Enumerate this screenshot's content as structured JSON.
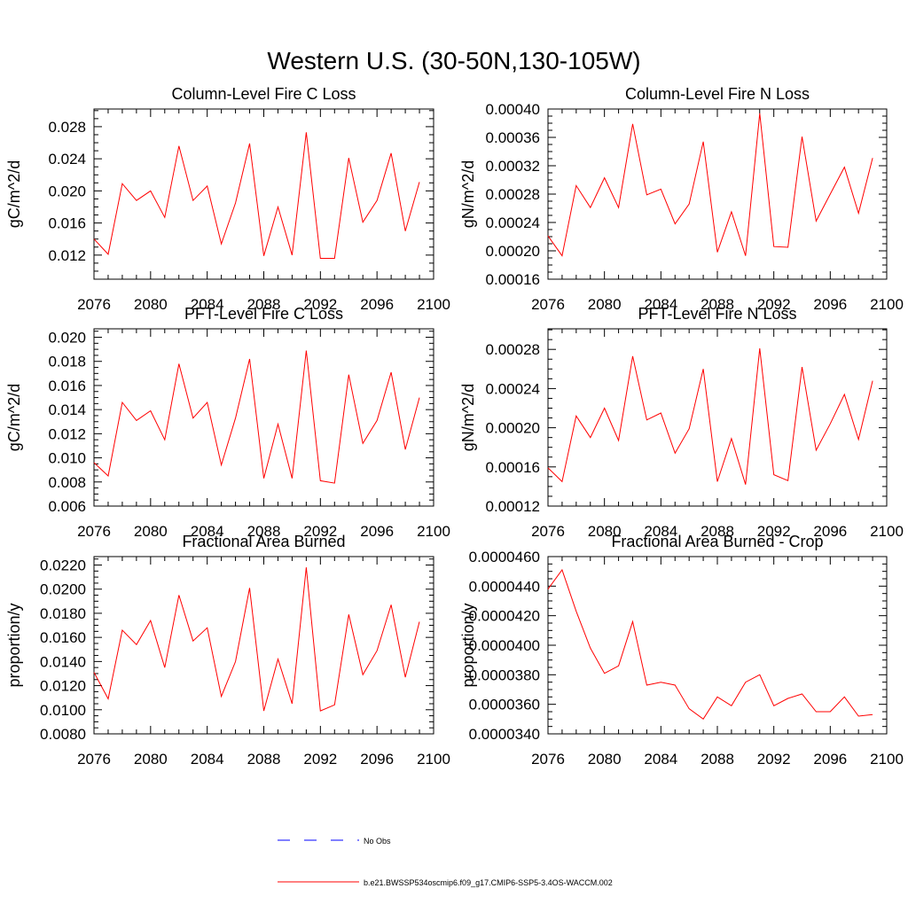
{
  "page": {
    "title": "Western U.S. (30-50N,130-105W)"
  },
  "legend": {
    "entries": [
      {
        "label": "No Obs",
        "color": "#0000ff",
        "style": "dashed"
      },
      {
        "label": "b.e21.BWSSP534oscmip6.f09_g17.CMIP6-SSP5-3.4OS-WACCM.002",
        "color": "#ff0000",
        "style": "solid"
      }
    ]
  },
  "chart_data": [
    {
      "type": "line",
      "title": "Column-Level Fire C Loss",
      "ylabel": "gC/m^2/d",
      "xlim": [
        2076,
        2100
      ],
      "ylim": [
        0.009,
        0.0302
      ],
      "xticks": [
        2076,
        2080,
        2084,
        2088,
        2092,
        2096,
        2100
      ],
      "yticks": [
        0.012,
        0.016,
        0.02,
        0.024,
        0.028
      ],
      "ytick_labels": [
        "0.012",
        "0.016",
        "0.020",
        "0.024",
        "0.028"
      ],
      "series": [
        {
          "color": "#ff0000",
          "x": [
            2076,
            2077,
            2078,
            2079,
            2080,
            2081,
            2082,
            2083,
            2084,
            2085,
            2086,
            2087,
            2088,
            2089,
            2090,
            2091,
            2092,
            2093,
            2094,
            2095,
            2096,
            2097,
            2098,
            2099
          ],
          "values": [
            0.014,
            0.0121,
            0.0209,
            0.0188,
            0.02,
            0.0167,
            0.0256,
            0.0188,
            0.0206,
            0.0134,
            0.0185,
            0.0259,
            0.0119,
            0.018,
            0.012,
            0.0273,
            0.0116,
            0.0116,
            0.0241,
            0.0161,
            0.0188,
            0.0247,
            0.015,
            0.0211
          ]
        }
      ]
    },
    {
      "type": "line",
      "title": "Column-Level Fire N Loss",
      "ylabel": "gN/m^2/d",
      "xlim": [
        2076,
        2100
      ],
      "ylim": [
        0.00016,
        0.0004
      ],
      "xticks": [
        2076,
        2080,
        2084,
        2088,
        2092,
        2096,
        2100
      ],
      "yticks": [
        0.00016,
        0.0002,
        0.00024,
        0.00028,
        0.00032,
        0.00036,
        0.0004
      ],
      "ytick_labels": [
        "0.00016",
        "0.00020",
        "0.00024",
        "0.00028",
        "0.00032",
        "0.00036",
        "0.00040"
      ],
      "series": [
        {
          "color": "#ff0000",
          "x": [
            2076,
            2077,
            2078,
            2079,
            2080,
            2081,
            2082,
            2083,
            2084,
            2085,
            2086,
            2087,
            2088,
            2089,
            2090,
            2091,
            2092,
            2093,
            2094,
            2095,
            2096,
            2097,
            2098,
            2099
          ],
          "values": [
            0.000221,
            0.000193,
            0.000292,
            0.000261,
            0.000303,
            0.000261,
            0.000379,
            0.000279,
            0.000287,
            0.000238,
            0.000266,
            0.000354,
            0.000198,
            0.000255,
            0.000193,
            0.000394,
            0.000206,
            0.000205,
            0.000361,
            0.000242,
            0.00028,
            0.000318,
            0.000253,
            0.000331
          ]
        }
      ]
    },
    {
      "type": "line",
      "title": "PFT-Level Fire C Loss",
      "ylabel": "gC/m^2/d",
      "xlim": [
        2076,
        2100
      ],
      "ylim": [
        0.006,
        0.0207
      ],
      "xticks": [
        2076,
        2080,
        2084,
        2088,
        2092,
        2096,
        2100
      ],
      "yticks": [
        0.006,
        0.008,
        0.01,
        0.012,
        0.014,
        0.016,
        0.018,
        0.02
      ],
      "ytick_labels": [
        "0.006",
        "0.008",
        "0.010",
        "0.012",
        "0.014",
        "0.016",
        "0.018",
        "0.020"
      ],
      "series": [
        {
          "color": "#ff0000",
          "x": [
            2076,
            2077,
            2078,
            2079,
            2080,
            2081,
            2082,
            2083,
            2084,
            2085,
            2086,
            2087,
            2088,
            2089,
            2090,
            2091,
            2092,
            2093,
            2094,
            2095,
            2096,
            2097,
            2098,
            2099
          ],
          "values": [
            0.0096,
            0.0085,
            0.0146,
            0.0131,
            0.0139,
            0.0115,
            0.0178,
            0.0133,
            0.0146,
            0.0094,
            0.0133,
            0.0182,
            0.0083,
            0.0128,
            0.0083,
            0.0189,
            0.0081,
            0.0079,
            0.0169,
            0.0112,
            0.0131,
            0.0171,
            0.0107,
            0.015
          ]
        }
      ]
    },
    {
      "type": "line",
      "title": "PFT-Level Fire N Loss",
      "ylabel": "gN/m^2/d",
      "xlim": [
        2076,
        2100
      ],
      "ylim": [
        0.00012,
        0.000301
      ],
      "xticks": [
        2076,
        2080,
        2084,
        2088,
        2092,
        2096,
        2100
      ],
      "yticks": [
        0.00012,
        0.00016,
        0.0002,
        0.00024,
        0.00028
      ],
      "ytick_labels": [
        "0.00012",
        "0.00016",
        "0.00020",
        "0.00024",
        "0.00028"
      ],
      "series": [
        {
          "color": "#ff0000",
          "x": [
            2076,
            2077,
            2078,
            2079,
            2080,
            2081,
            2082,
            2083,
            2084,
            2085,
            2086,
            2087,
            2088,
            2089,
            2090,
            2091,
            2092,
            2093,
            2094,
            2095,
            2096,
            2097,
            2098,
            2099
          ],
          "values": [
            0.000159,
            0.000145,
            0.000212,
            0.00019,
            0.00022,
            0.000187,
            0.000273,
            0.000208,
            0.000215,
            0.000174,
            0.000199,
            0.00026,
            0.000145,
            0.000189,
            0.000142,
            0.000281,
            0.000152,
            0.000146,
            0.000262,
            0.000177,
            0.000204,
            0.000234,
            0.000188,
            0.000248
          ]
        }
      ]
    },
    {
      "type": "line",
      "title": "Fractional Area Burned",
      "ylabel": "proportion/y",
      "xlim": [
        2076,
        2100
      ],
      "ylim": [
        0.008,
        0.0227
      ],
      "xticks": [
        2076,
        2080,
        2084,
        2088,
        2092,
        2096,
        2100
      ],
      "yticks": [
        0.008,
        0.01,
        0.012,
        0.014,
        0.016,
        0.018,
        0.02,
        0.022
      ],
      "ytick_labels": [
        "0.0080",
        "0.0100",
        "0.0120",
        "0.0140",
        "0.0160",
        "0.0180",
        "0.0200",
        "0.0220"
      ],
      "series": [
        {
          "color": "#ff0000",
          "x": [
            2076,
            2077,
            2078,
            2079,
            2080,
            2081,
            2082,
            2083,
            2084,
            2085,
            2086,
            2087,
            2088,
            2089,
            2090,
            2091,
            2092,
            2093,
            2094,
            2095,
            2096,
            2097,
            2098,
            2099
          ],
          "values": [
            0.0131,
            0.0109,
            0.0166,
            0.0154,
            0.0174,
            0.0135,
            0.0195,
            0.0157,
            0.0168,
            0.0111,
            0.014,
            0.0201,
            0.0099,
            0.0142,
            0.0105,
            0.0218,
            0.0099,
            0.0104,
            0.0179,
            0.0129,
            0.0149,
            0.0187,
            0.0127,
            0.0173
          ]
        }
      ]
    },
    {
      "type": "line",
      "title": "Fractional Area Burned - Crop",
      "ylabel": "proportion/y",
      "xlim": [
        2076,
        2100
      ],
      "ylim": [
        3.4e-05,
        4.6e-05
      ],
      "xticks": [
        2076,
        2080,
        2084,
        2088,
        2092,
        2096,
        2100
      ],
      "yticks": [
        3.4e-05,
        3.6e-05,
        3.8e-05,
        4e-05,
        4.2e-05,
        4.4e-05,
        4.6e-05
      ],
      "ytick_labels": [
        "0.0000340",
        "0.0000360",
        "0.0000380",
        "0.0000400",
        "0.0000420",
        "0.0000440",
        "0.0000460"
      ],
      "series": [
        {
          "color": "#ff0000",
          "x": [
            2076,
            2077,
            2078,
            2079,
            2080,
            2081,
            2082,
            2083,
            2084,
            2085,
            2086,
            2087,
            2088,
            2089,
            2090,
            2091,
            2092,
            2093,
            2094,
            2095,
            2096,
            2097,
            2098,
            2099
          ],
          "values": [
            4.38e-05,
            4.51e-05,
            4.23e-05,
            3.98e-05,
            3.81e-05,
            3.86e-05,
            4.16e-05,
            3.73e-05,
            3.75e-05,
            3.73e-05,
            3.57e-05,
            3.5e-05,
            3.65e-05,
            3.59e-05,
            3.75e-05,
            3.8e-05,
            3.59e-05,
            3.64e-05,
            3.67e-05,
            3.55e-05,
            3.55e-05,
            3.65e-05,
            3.52e-05,
            3.53e-05
          ]
        }
      ]
    }
  ]
}
